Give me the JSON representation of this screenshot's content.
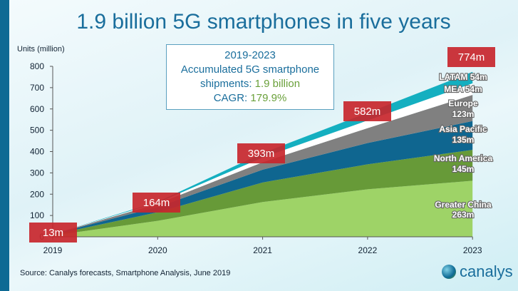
{
  "title": "1.9 billion 5G smartphones in five years",
  "callout": {
    "line1": "2019-2023",
    "line2": "Accumulated 5G smartphone",
    "line3a": "shipments: ",
    "line3b": "1.9 billion",
    "line4a": "CAGR: ",
    "line4b": "179.9%"
  },
  "source": "Source: Canalys forecasts, Smartphone Analysis, June 2019",
  "logo": "canalys",
  "chart_data": {
    "type": "area",
    "stacked": true,
    "ylabel": "Units (million)",
    "ylim": [
      0,
      800
    ],
    "yticks": [
      0,
      100,
      200,
      300,
      400,
      500,
      600,
      700,
      800
    ],
    "categories": [
      "2019",
      "2020",
      "2021",
      "2022",
      "2023"
    ],
    "totals": [
      "13m",
      "164m",
      "393m",
      "582m",
      "774m"
    ],
    "total_values": [
      13,
      164,
      393,
      582,
      774
    ],
    "series": [
      {
        "name": "Greater China",
        "label": "263m",
        "color": "#9ed367",
        "values": [
          6,
          75,
          163,
          223,
          263
        ]
      },
      {
        "name": "North America",
        "label": "145m",
        "color": "#679a38",
        "values": [
          4,
          40,
          92,
          117,
          145
        ]
      },
      {
        "name": "Asia Pacific",
        "label": "135m",
        "color": "#0f6690",
        "values": [
          2,
          25,
          60,
          100,
          135
        ]
      },
      {
        "name": "Europe",
        "label": "123m",
        "color": "#808080",
        "values": [
          1,
          15,
          35,
          70,
          123
        ]
      },
      {
        "name": "MEA",
        "label": "54m",
        "color": "#ffffff",
        "values": [
          0,
          5,
          22,
          36,
          54
        ]
      },
      {
        "name": "LATAM",
        "label": "54m",
        "color": "#14afc0",
        "values": [
          0,
          4,
          21,
          36,
          54
        ]
      }
    ],
    "grid": false,
    "label_color": "#c8262d"
  }
}
